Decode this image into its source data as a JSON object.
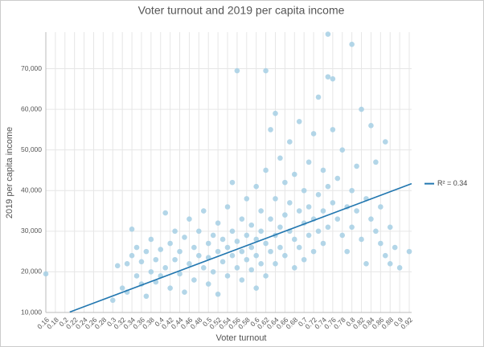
{
  "chart_data": {
    "type": "scatter",
    "title": "Voter turnout and 2019 per capita income",
    "xlabel": "Voter turnout",
    "ylabel": "2019 per capita income",
    "color": "#a6cfe4",
    "grid": true,
    "legend": "right",
    "xlim": [
      0.16,
      0.925
    ],
    "ylim": [
      10000,
      79000
    ],
    "xticks": [
      0.16,
      0.18,
      0.2,
      0.22,
      0.24,
      0.26,
      0.28,
      0.3,
      0.32,
      0.34,
      0.36,
      0.38,
      0.4,
      0.42,
      0.44,
      0.46,
      0.48,
      0.5,
      0.52,
      0.54,
      0.56,
      0.58,
      0.6,
      0.62,
      0.64,
      0.66,
      0.68,
      0.7,
      0.72,
      0.74,
      0.76,
      0.78,
      0.8,
      0.82,
      0.84,
      0.86,
      0.88,
      0.9,
      0.92
    ],
    "yticks": [
      {
        "value": 10000,
        "label": "10,000"
      },
      {
        "value": 20000,
        "label": "20,000"
      },
      {
        "value": 30000,
        "label": "30,000"
      },
      {
        "value": 40000,
        "label": "40,000"
      },
      {
        "value": 50000,
        "label": "50,000"
      },
      {
        "value": 60000,
        "label": "60,000"
      },
      {
        "value": 70000,
        "label": "70,000"
      }
    ],
    "x": [
      0.16,
      0.3,
      0.31,
      0.32,
      0.33,
      0.33,
      0.34,
      0.34,
      0.35,
      0.35,
      0.36,
      0.36,
      0.37,
      0.37,
      0.38,
      0.38,
      0.39,
      0.39,
      0.4,
      0.4,
      0.41,
      0.41,
      0.42,
      0.42,
      0.43,
      0.43,
      0.44,
      0.44,
      0.45,
      0.45,
      0.46,
      0.46,
      0.47,
      0.47,
      0.48,
      0.48,
      0.49,
      0.49,
      0.5,
      0.5,
      0.5,
      0.51,
      0.51,
      0.52,
      0.52,
      0.52,
      0.53,
      0.53,
      0.54,
      0.54,
      0.54,
      0.55,
      0.55,
      0.55,
      0.56,
      0.56,
      0.56,
      0.57,
      0.57,
      0.57,
      0.58,
      0.58,
      0.58,
      0.59,
      0.59,
      0.59,
      0.6,
      0.6,
      0.6,
      0.6,
      0.61,
      0.61,
      0.61,
      0.62,
      0.62,
      0.62,
      0.62,
      0.63,
      0.63,
      0.63,
      0.64,
      0.64,
      0.64,
      0.64,
      0.65,
      0.65,
      0.65,
      0.66,
      0.66,
      0.66,
      0.67,
      0.67,
      0.67,
      0.68,
      0.68,
      0.68,
      0.69,
      0.69,
      0.69,
      0.7,
      0.7,
      0.7,
      0.71,
      0.71,
      0.71,
      0.72,
      0.72,
      0.72,
      0.73,
      0.73,
      0.73,
      0.74,
      0.74,
      0.74,
      0.75,
      0.75,
      0.75,
      0.75,
      0.76,
      0.76,
      0.76,
      0.77,
      0.77,
      0.78,
      0.78,
      0.79,
      0.79,
      0.8,
      0.8,
      0.8,
      0.81,
      0.81,
      0.82,
      0.82,
      0.83,
      0.83,
      0.84,
      0.84,
      0.85,
      0.85,
      0.86,
      0.86,
      0.87,
      0.87,
      0.88,
      0.88,
      0.89,
      0.9,
      0.92
    ],
    "values": [
      19500,
      13000,
      21500,
      16000,
      22000,
      15000,
      24000,
      30500,
      19000,
      26000,
      17000,
      22500,
      25000,
      14000,
      20000,
      28000,
      23000,
      17500,
      25500,
      19000,
      34500,
      21000,
      27000,
      16000,
      23000,
      30000,
      19500,
      25000,
      28500,
      15000,
      22000,
      33000,
      26000,
      18000,
      24000,
      30000,
      21000,
      35000,
      27000,
      17000,
      23500,
      29000,
      20000,
      25000,
      32000,
      14500,
      22500,
      28000,
      36000,
      19000,
      26000,
      24000,
      30000,
      42000,
      21000,
      27500,
      69500,
      33000,
      18000,
      25000,
      29000,
      23000,
      38000,
      26000,
      20500,
      31500,
      28000,
      24000,
      41000,
      16000,
      35000,
      22000,
      30000,
      27000,
      69500,
      45000,
      19000,
      33000,
      25000,
      55000,
      29000,
      38000,
      22000,
      59000,
      31000,
      26000,
      48000,
      34000,
      24000,
      42000,
      30000,
      37000,
      52000,
      28000,
      44000,
      21000,
      35000,
      26000,
      57000,
      32000,
      40000,
      23000,
      36000,
      47000,
      29000,
      33000,
      54000,
      25000,
      39000,
      30000,
      63000,
      35000,
      45000,
      27000,
      78500,
      68000,
      41000,
      31000,
      67500,
      37000,
      55000,
      33000,
      43000,
      29000,
      50000,
      36000,
      25000,
      40000,
      76000,
      31000,
      46000,
      35000,
      60000,
      28000,
      38000,
      22000,
      56000,
      33000,
      30000,
      47000,
      27000,
      36000,
      52000,
      24000,
      31000,
      22000,
      26000,
      21000,
      25000
    ],
    "trendline": {
      "name": "R² = 0.34",
      "color": "#2277b0",
      "x": [
        0.21,
        0.925
      ],
      "values": [
        10100,
        41700
      ]
    }
  }
}
